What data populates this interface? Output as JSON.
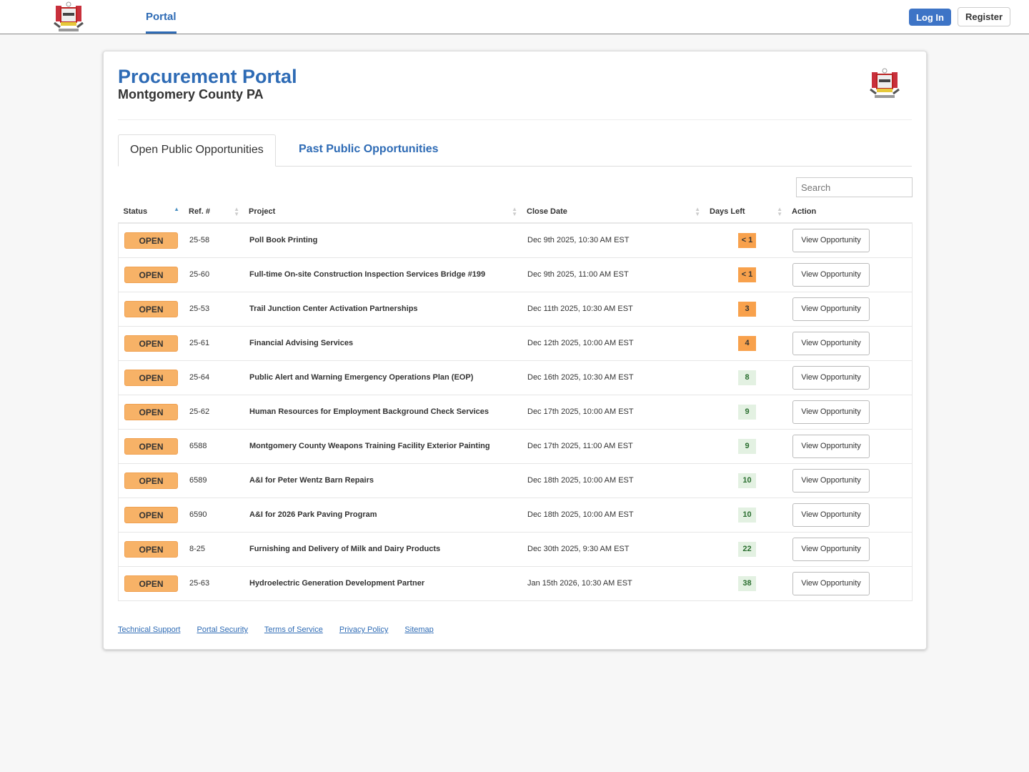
{
  "topbar": {
    "nav_tab": "Portal",
    "login": "Log In",
    "register": "Register"
  },
  "header": {
    "title": "Procurement Portal",
    "subtitle": "Montgomery County PA"
  },
  "tabs": [
    "Open Public Opportunities",
    "Past Public Opportunities"
  ],
  "search": {
    "placeholder": "Search"
  },
  "columns": [
    "Status",
    "Ref. #",
    "Project",
    "Close Date",
    "Days Left",
    "Action"
  ],
  "rows": [
    {
      "status": "OPEN",
      "ref": "25-58",
      "project": "Poll Book Printing",
      "close": "Dec 9th 2025, 10:30 AM EST",
      "days": "< 1",
      "urgent": true,
      "action": "View Opportunity"
    },
    {
      "status": "OPEN",
      "ref": "25-60",
      "project": "Full-time On-site Construction Inspection Services Bridge #199",
      "close": "Dec 9th 2025, 11:00 AM EST",
      "days": "< 1",
      "urgent": true,
      "action": "View Opportunity"
    },
    {
      "status": "OPEN",
      "ref": "25-53",
      "project": "Trail Junction Center Activation Partnerships",
      "close": "Dec 11th 2025, 10:30 AM EST",
      "days": "3",
      "urgent": true,
      "action": "View Opportunity"
    },
    {
      "status": "OPEN",
      "ref": "25-61",
      "project": "Financial Advising Services",
      "close": "Dec 12th 2025, 10:00 AM EST",
      "days": "4",
      "urgent": true,
      "action": "View Opportunity"
    },
    {
      "status": "OPEN",
      "ref": "25-64",
      "project": "Public Alert and Warning Emergency Operations Plan (EOP)",
      "close": "Dec 16th 2025, 10:30 AM EST",
      "days": "8",
      "urgent": false,
      "action": "View Opportunity"
    },
    {
      "status": "OPEN",
      "ref": "25-62",
      "project": "Human Resources for Employment Background Check Services",
      "close": "Dec 17th 2025, 10:00 AM EST",
      "days": "9",
      "urgent": false,
      "action": "View Opportunity"
    },
    {
      "status": "OPEN",
      "ref": "6588",
      "project": "Montgomery County Weapons Training Facility Exterior Painting",
      "close": "Dec 17th 2025, 11:00 AM EST",
      "days": "9",
      "urgent": false,
      "action": "View Opportunity"
    },
    {
      "status": "OPEN",
      "ref": "6589",
      "project": "A&I for Peter Wentz Barn Repairs",
      "close": "Dec 18th 2025, 10:00 AM EST",
      "days": "10",
      "urgent": false,
      "action": "View Opportunity"
    },
    {
      "status": "OPEN",
      "ref": "6590",
      "project": "A&I for 2026 Park Paving Program",
      "close": "Dec 18th 2025, 10:00 AM EST",
      "days": "10",
      "urgent": false,
      "action": "View Opportunity"
    },
    {
      "status": "OPEN",
      "ref": "8-25",
      "project": "Furnishing and Delivery of Milk and Dairy Products",
      "close": "Dec 30th 2025, 9:30 AM EST",
      "days": "22",
      "urgent": false,
      "action": "View Opportunity"
    },
    {
      "status": "OPEN",
      "ref": "25-63",
      "project": "Hydroelectric Generation Development Partner",
      "close": "Jan 15th 2026, 10:30 AM EST",
      "days": "38",
      "urgent": false,
      "action": "View Opportunity"
    }
  ],
  "footer": [
    "Technical Support",
    "Portal Security",
    "Terms of Service",
    "Privacy Policy",
    "Sitemap"
  ],
  "colors": {
    "accent": "#2e6bb5",
    "open_badge": "#f7b267",
    "urgent": "#f8a14c",
    "ok": "#e3f1e2"
  }
}
